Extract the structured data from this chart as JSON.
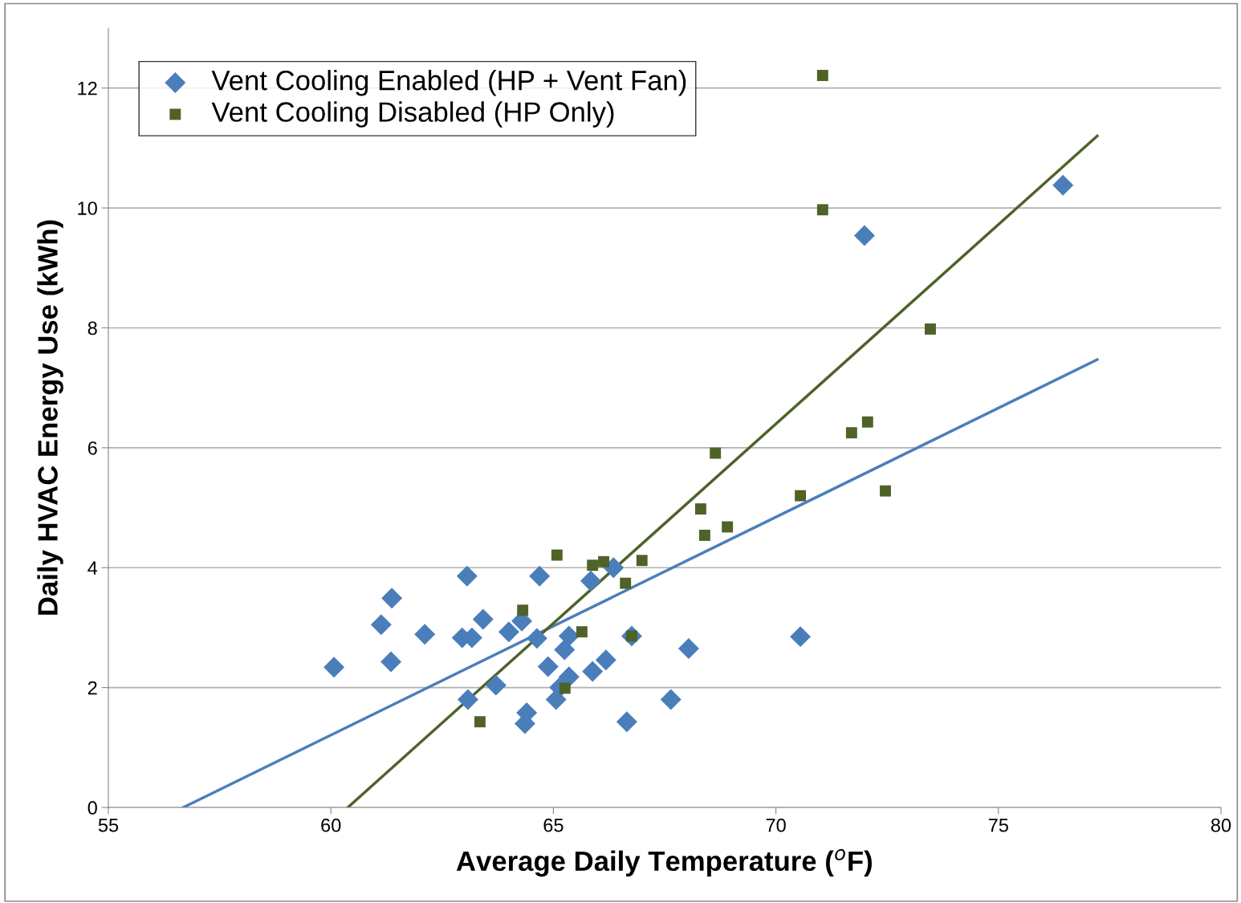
{
  "chart_data": {
    "type": "scatter",
    "xlabel": "Average Daily Temperature ($^{o}$F)",
    "ylabel": "Daily HVAC Energy Use (kWh)",
    "xlim": [
      55,
      80
    ],
    "xticks": [
      55,
      60,
      65,
      70,
      75,
      80
    ],
    "ylim": [
      0,
      13
    ],
    "yticks": [
      0,
      2,
      4,
      6,
      8,
      10,
      12
    ],
    "grid": "y",
    "legend": "top left",
    "series": [
      {
        "name": "Vent Cooling Enabled (HP + Vent Fan)",
        "color": "#4a7ebb",
        "marker": "diamond",
        "x": [
          60.07,
          61.13,
          61.37,
          61.35,
          62.11,
          62.95,
          63.17,
          63.06,
          63.42,
          63.08,
          63.71,
          64.0,
          64.29,
          64.4,
          64.36,
          64.63,
          64.69,
          64.88,
          65.14,
          65.06,
          65.25,
          65.35,
          65.35,
          65.84,
          65.88,
          66.18,
          66.35,
          66.65,
          66.76,
          67.64,
          68.04,
          70.55,
          71.99,
          76.45
        ],
        "values": [
          2.34,
          3.05,
          3.49,
          2.43,
          2.89,
          2.83,
          2.83,
          3.86,
          3.14,
          1.8,
          2.04,
          2.93,
          3.11,
          1.58,
          1.4,
          2.82,
          3.86,
          2.35,
          2.0,
          1.8,
          2.63,
          2.86,
          2.18,
          3.78,
          2.27,
          2.46,
          4.0,
          1.43,
          2.86,
          1.8,
          2.65,
          2.85,
          9.54,
          10.38
        ]
      },
      {
        "name": "Vent Cooling Disabled (HP Only)",
        "color": "#4f6228",
        "marker": "square",
        "x": [
          71.05,
          71.05,
          73.47,
          71.7,
          72.06,
          68.64,
          70.55,
          72.46,
          68.31,
          68.4,
          68.91,
          65.08,
          65.88,
          66.13,
          66.99,
          66.62,
          64.31,
          65.64,
          66.76,
          65.26,
          63.35
        ],
        "values": [
          12.21,
          9.97,
          7.98,
          6.25,
          6.43,
          5.91,
          5.2,
          5.28,
          4.98,
          4.54,
          4.68,
          4.21,
          4.04,
          4.1,
          4.12,
          3.74,
          3.29,
          2.93,
          2.86,
          1.99,
          1.43
        ]
      },
      {
        "type": "line",
        "color": "#4a7ebb",
        "marker": "none",
        "line_style": "solid",
        "x": [
          56.68,
          77.22
        ],
        "values": [
          0,
          7.47
        ]
      },
      {
        "type": "line",
        "color": "#4f6228",
        "marker": "none",
        "line_style": "solid",
        "x": [
          60.38,
          77.22
        ],
        "values": [
          0,
          11.2
        ]
      }
    ]
  }
}
